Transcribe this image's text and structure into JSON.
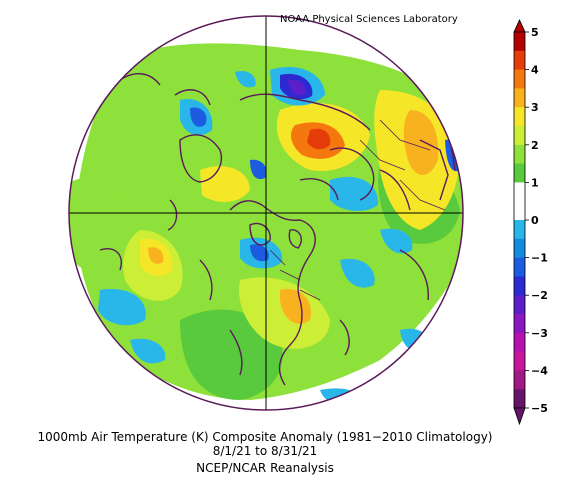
{
  "credit": "NOAA Physical Sciences Laboratory",
  "caption": {
    "line1": "1000mb Air Temperature (K) Composite Anomaly (1981−2010 Climatology)",
    "line2": "8/1/21   to 8/31/21",
    "line3": "NCEP/NCAR Reanalysis"
  },
  "colorbar": {
    "ticks": [
      "5",
      "4",
      "3",
      "2",
      "1",
      "0",
      "−1",
      "−2",
      "−3",
      "−4",
      "−5"
    ],
    "colors": [
      "#b30000",
      "#e63c0a",
      "#f5780f",
      "#f9b21f",
      "#f5e628",
      "#cdee37",
      "#8ee03a",
      "#59c93d",
      "#ffffff",
      "#ffffff",
      "#29b6e9",
      "#138be0",
      "#1d5ce0",
      "#2b2bd1",
      "#5a1fc8",
      "#8a17c0",
      "#b512b0",
      "#c8169c",
      "#a01a86",
      "#66136a"
    ]
  },
  "map": {
    "projection": "north polar stereographic",
    "outline_color": "#5a1a5a",
    "ocean_color": "#ffffff",
    "land_color": "#ffffff"
  }
}
